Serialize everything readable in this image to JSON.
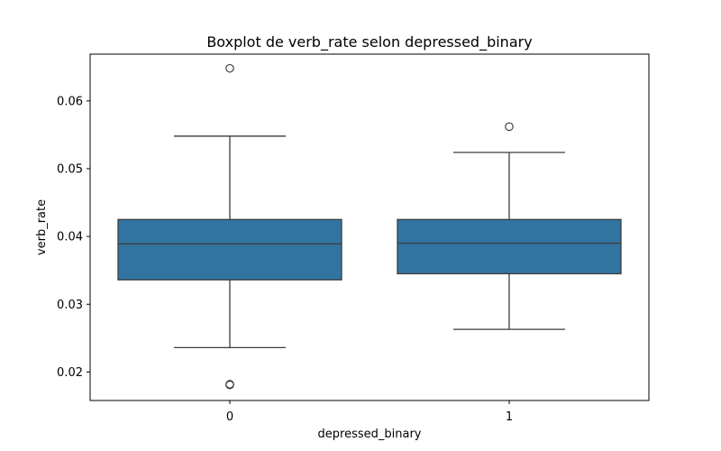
{
  "chart_data": {
    "type": "boxplot",
    "title": "Boxplot de verb_rate selon depressed_binary",
    "xlabel": "depressed_binary",
    "ylabel": "verb_rate",
    "ylim": [
      0.0158,
      0.0669
    ],
    "yticks": [
      0.02,
      0.03,
      0.04,
      0.05,
      0.06
    ],
    "ytick_labels": [
      "0.02",
      "0.03",
      "0.04",
      "0.05",
      "0.06"
    ],
    "categories": [
      "0",
      "1"
    ],
    "grid": false,
    "legend": "none",
    "box_color": "#3274a1",
    "edge_color": "#3d3d3d",
    "boxes": [
      {
        "category": "0",
        "whisker_low": 0.0236,
        "q1": 0.0336,
        "median": 0.0389,
        "q3": 0.0425,
        "whisker_high": 0.0548,
        "outliers": [
          0.0648,
          0.0181,
          0.0182
        ]
      },
      {
        "category": "1",
        "whisker_low": 0.0263,
        "q1": 0.0345,
        "median": 0.039,
        "q3": 0.0425,
        "whisker_high": 0.0524,
        "outliers": [
          0.0562
        ]
      }
    ]
  }
}
